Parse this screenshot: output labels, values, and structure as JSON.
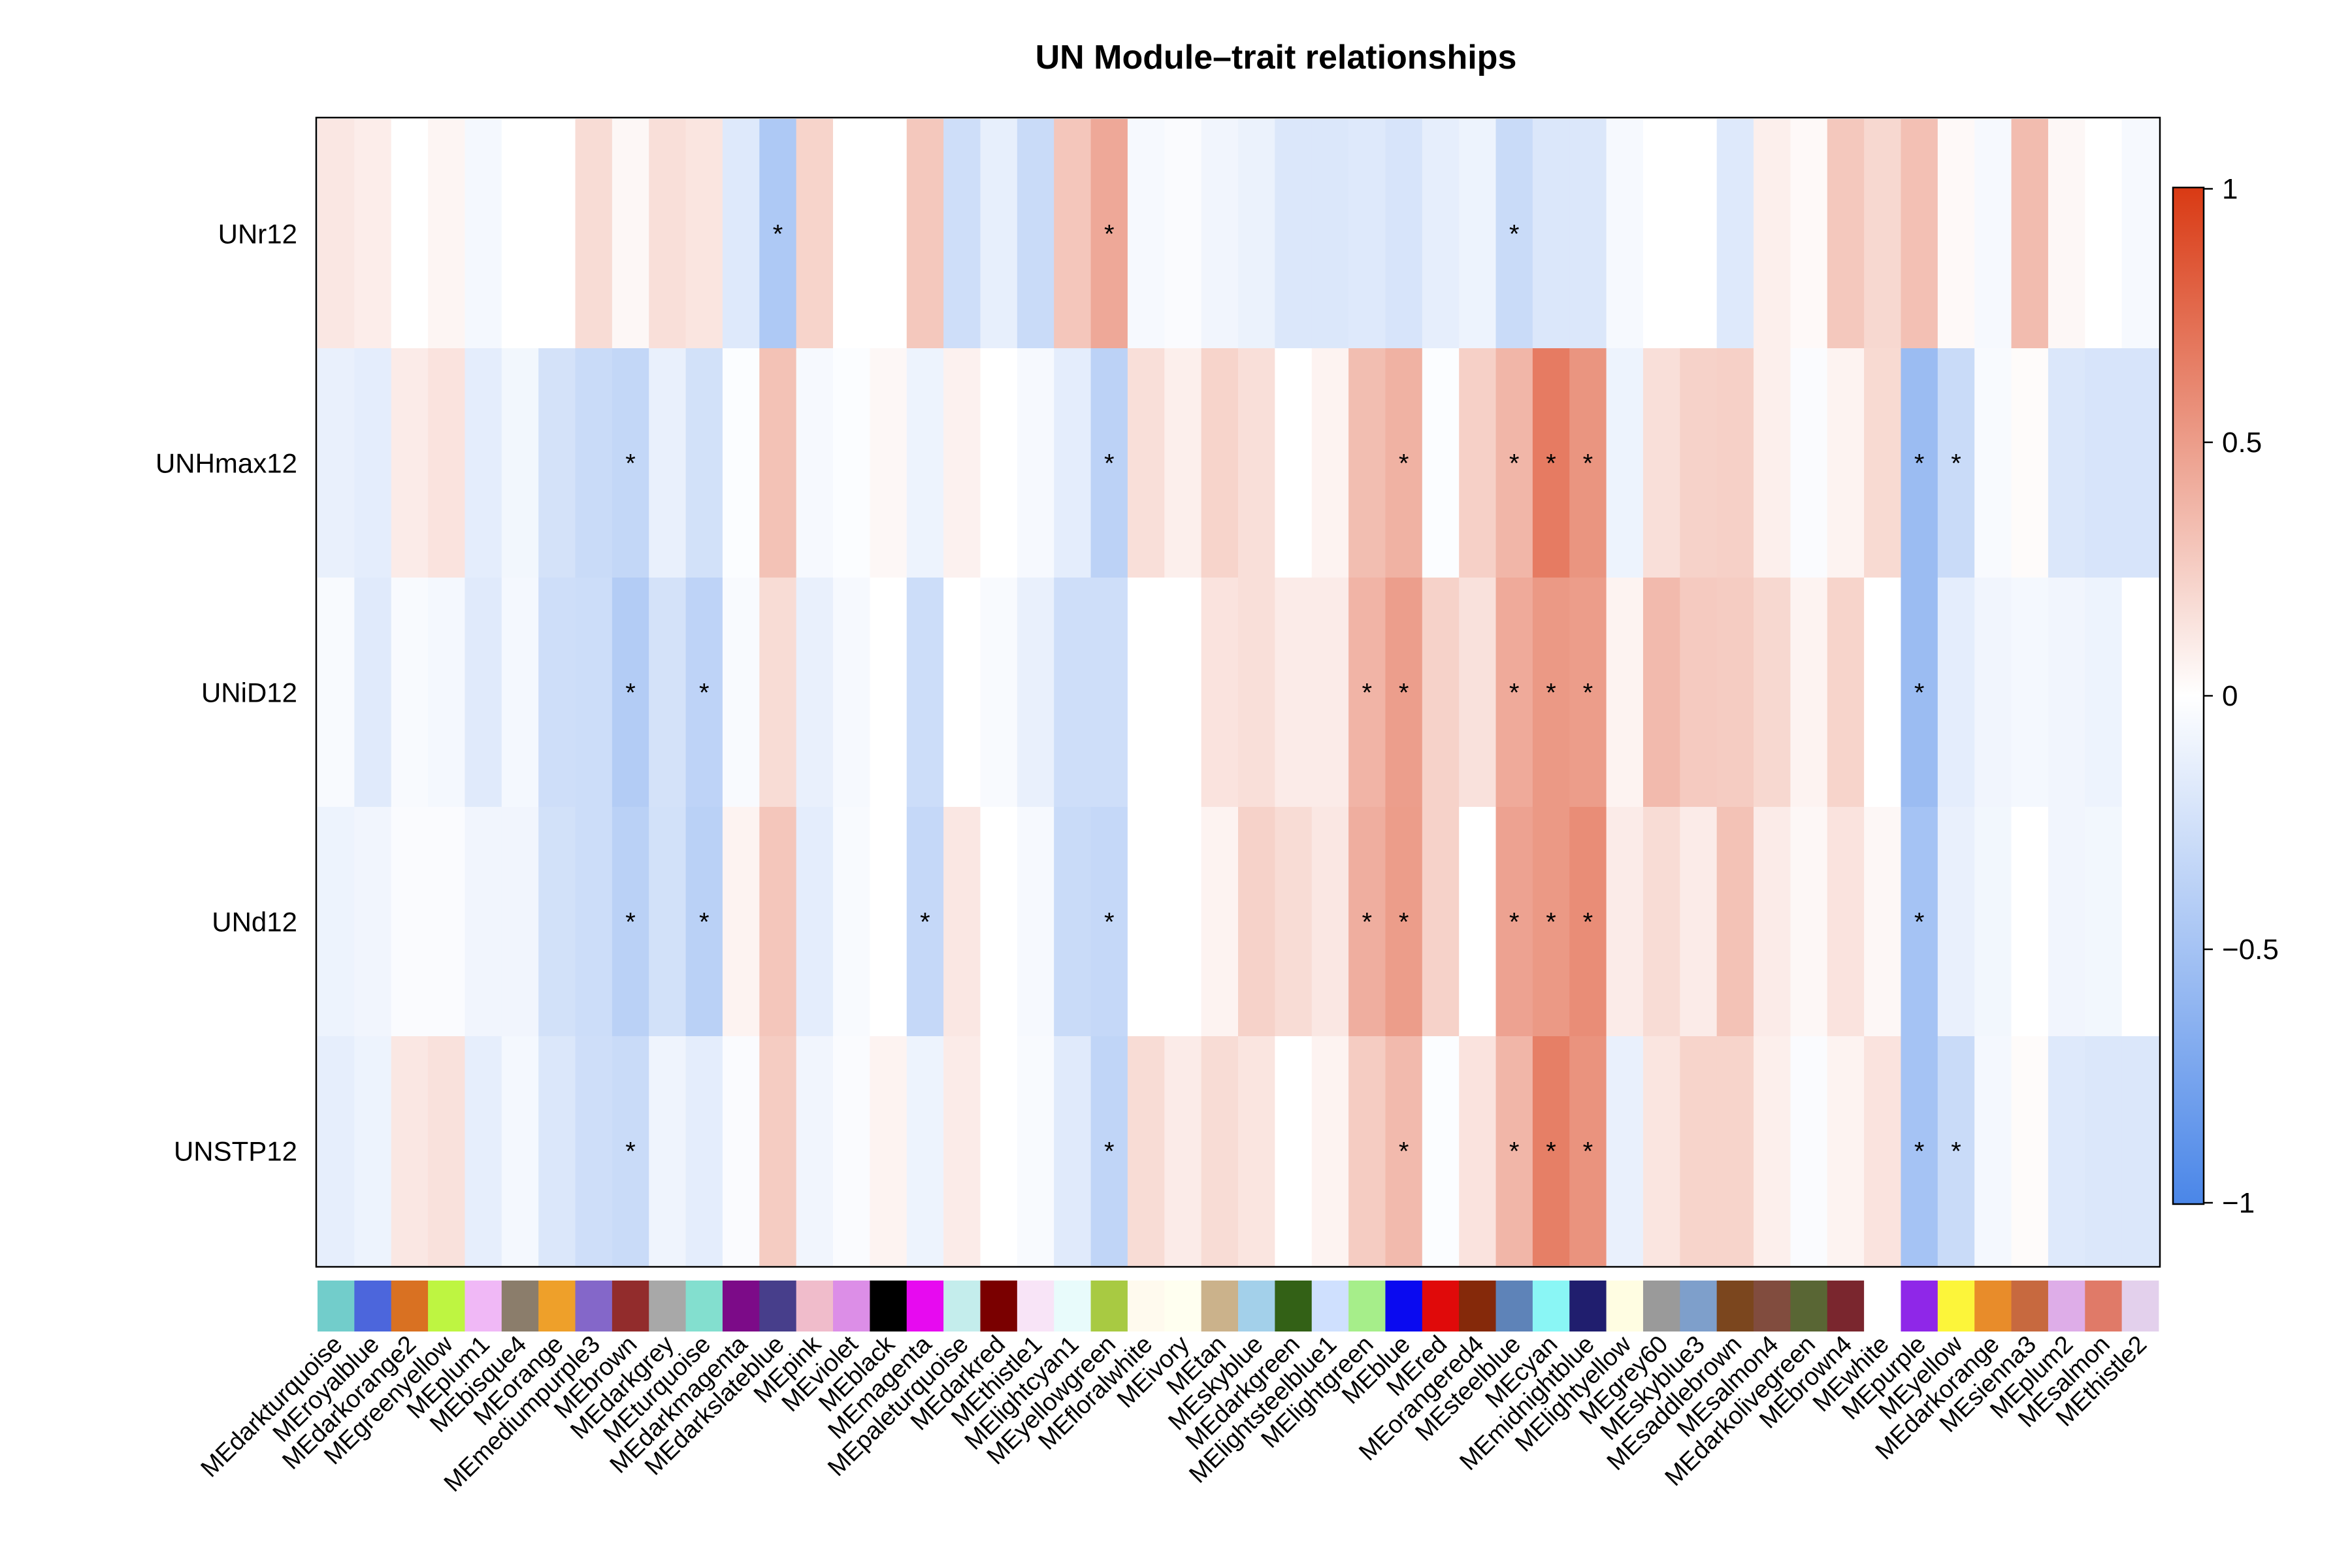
{
  "chart_data": {
    "type": "heatmap",
    "title": "UN Module–trait relationships",
    "rows": [
      "UNr12",
      "UNHmax12",
      "UNiD12",
      "UNd12",
      "UNSTP12"
    ],
    "columns": [
      {
        "name": "MEdarkturquoise",
        "color": "#72CDCB"
      },
      {
        "name": "MEroyalblue",
        "color": "#4C66DC"
      },
      {
        "name": "MEdarkorange2",
        "color": "#D97122"
      },
      {
        "name": "MEgreenyellow",
        "color": "#BEF541"
      },
      {
        "name": "MEplum1",
        "color": "#F0B8F6"
      },
      {
        "name": "MEbisque4",
        "color": "#8B7D6B"
      },
      {
        "name": "MEorange",
        "color": "#EEA02A"
      },
      {
        "name": "MEmediumpurple3",
        "color": "#8467C9"
      },
      {
        "name": "MEbrown",
        "color": "#922C2C"
      },
      {
        "name": "MEdarkgrey",
        "color": "#A8A8A8"
      },
      {
        "name": "MEturquoise",
        "color": "#83DFCF"
      },
      {
        "name": "MEdarkmagenta",
        "color": "#7C0B88"
      },
      {
        "name": "MEdarkslateblue",
        "color": "#473E8B"
      },
      {
        "name": "MEpink",
        "color": "#F0BCCB"
      },
      {
        "name": "MEviolet",
        "color": "#DC8EE7"
      },
      {
        "name": "MEblack",
        "color": "#000000"
      },
      {
        "name": "MEmagenta",
        "color": "#E70AF0"
      },
      {
        "name": "MEpaleturquoise",
        "color": "#C4EDEC"
      },
      {
        "name": "MEdarkred",
        "color": "#7A0000"
      },
      {
        "name": "MEthistle1",
        "color": "#F8E4F7"
      },
      {
        "name": "MElightcyan1",
        "color": "#E8FBFB"
      },
      {
        "name": "MEyellowgreen",
        "color": "#A8CA42"
      },
      {
        "name": "MEfloralwhite",
        "color": "#FFFAEE"
      },
      {
        "name": "MEivory",
        "color": "#FFFFF0"
      },
      {
        "name": "MEtan",
        "color": "#CBB28B"
      },
      {
        "name": "MEskyblue",
        "color": "#A3D0EA"
      },
      {
        "name": "MEdarkgreen",
        "color": "#336116"
      },
      {
        "name": "MElightsteelblue1",
        "color": "#CFE0FE"
      },
      {
        "name": "MElightgreen",
        "color": "#A6EE8A"
      },
      {
        "name": "MEblue",
        "color": "#0A0AF0"
      },
      {
        "name": "MEred",
        "color": "#E00A0A"
      },
      {
        "name": "MEorangered4",
        "color": "#85290A"
      },
      {
        "name": "MEsteelblue",
        "color": "#5E83B8"
      },
      {
        "name": "MEcyan",
        "color": "#8AF6F5"
      },
      {
        "name": "MEmidnightblue",
        "color": "#201E6E"
      },
      {
        "name": "MElightyellow",
        "color": "#FFFDE2"
      },
      {
        "name": "MEgrey60",
        "color": "#9A9A9A"
      },
      {
        "name": "MEskyblue3",
        "color": "#7E9FCB"
      },
      {
        "name": "MEsaddlebrown",
        "color": "#7B461E"
      },
      {
        "name": "MEsalmon4",
        "color": "#814C3E"
      },
      {
        "name": "MEdarkolivegreen",
        "color": "#596634"
      },
      {
        "name": "MEbrown4",
        "color": "#7A262E"
      },
      {
        "name": "MEwhite",
        "color": "#FFFFFF"
      },
      {
        "name": "MEpurple",
        "color": "#8F27E8"
      },
      {
        "name": "MEyellow",
        "color": "#FCF53A"
      },
      {
        "name": "MEdarkorange",
        "color": "#E88C2A"
      },
      {
        "name": "MEsienna3",
        "color": "#C7693F"
      },
      {
        "name": "MEplum2",
        "color": "#DEADE8"
      },
      {
        "name": "MEsalmon",
        "color": "#E07A68"
      },
      {
        "name": "MEthistle2",
        "color": "#E3D0EC"
      }
    ],
    "values": [
      [
        0.12,
        0.09,
        0.0,
        0.05,
        -0.06,
        0.0,
        0.0,
        0.18,
        0.04,
        0.16,
        0.13,
        -0.18,
        -0.45,
        0.22,
        0.0,
        0.0,
        0.28,
        -0.27,
        -0.13,
        -0.3,
        0.29,
        0.44,
        -0.05,
        -0.03,
        -0.08,
        -0.11,
        -0.2,
        -0.2,
        -0.18,
        -0.22,
        -0.14,
        -0.1,
        -0.3,
        -0.2,
        -0.2,
        -0.05,
        0.0,
        0.0,
        -0.18,
        0.08,
        0.03,
        0.28,
        0.2,
        0.32,
        0.03,
        -0.05,
        0.34,
        0.04,
        0.0,
        -0.05
      ],
      [
        -0.12,
        -0.15,
        0.1,
        0.14,
        -0.15,
        -0.07,
        -0.24,
        -0.3,
        -0.33,
        -0.12,
        -0.25,
        -0.02,
        0.31,
        -0.05,
        -0.02,
        0.04,
        -0.1,
        0.07,
        0.0,
        -0.05,
        -0.15,
        -0.37,
        0.16,
        0.08,
        0.22,
        0.16,
        0.0,
        0.06,
        0.33,
        0.39,
        -0.02,
        0.24,
        0.37,
        0.67,
        0.54,
        -0.1,
        0.16,
        0.23,
        0.24,
        0.08,
        -0.03,
        0.06,
        0.19,
        -0.55,
        -0.3,
        -0.04,
        0.02,
        -0.2,
        -0.22,
        -0.22
      ],
      [
        -0.04,
        -0.17,
        -0.04,
        -0.06,
        -0.17,
        -0.06,
        -0.27,
        -0.28,
        -0.42,
        -0.24,
        -0.36,
        -0.04,
        0.18,
        -0.12,
        -0.05,
        0.0,
        -0.28,
        0.0,
        -0.04,
        -0.12,
        -0.27,
        -0.27,
        0.0,
        0.0,
        0.14,
        0.16,
        0.1,
        0.1,
        0.38,
        0.49,
        0.23,
        0.15,
        0.43,
        0.52,
        0.5,
        0.06,
        0.35,
        0.27,
        0.26,
        0.2,
        0.06,
        0.22,
        0.0,
        -0.55,
        -0.15,
        -0.08,
        -0.06,
        -0.08,
        -0.1,
        0.0
      ],
      [
        -0.1,
        -0.08,
        -0.03,
        -0.03,
        -0.08,
        -0.08,
        -0.25,
        -0.28,
        -0.38,
        -0.25,
        -0.38,
        0.06,
        0.29,
        -0.15,
        -0.04,
        0.0,
        -0.32,
        0.12,
        0.0,
        -0.05,
        -0.3,
        -0.32,
        0.0,
        0.0,
        0.06,
        0.23,
        0.18,
        0.12,
        0.41,
        0.5,
        0.23,
        0.0,
        0.47,
        0.52,
        0.58,
        0.1,
        0.18,
        0.1,
        0.31,
        0.1,
        0.04,
        0.14,
        0.04,
        -0.5,
        -0.12,
        -0.07,
        0.0,
        -0.08,
        -0.07,
        0.0
      ],
      [
        -0.14,
        -0.1,
        0.12,
        0.15,
        -0.14,
        -0.06,
        -0.2,
        -0.27,
        -0.3,
        -0.09,
        -0.15,
        -0.03,
        0.26,
        -0.08,
        -0.03,
        0.06,
        -0.1,
        0.1,
        0.0,
        -0.04,
        -0.17,
        -0.35,
        0.18,
        0.1,
        0.18,
        0.13,
        0.0,
        0.06,
        0.26,
        0.35,
        -0.02,
        0.14,
        0.37,
        0.65,
        0.55,
        -0.12,
        0.13,
        0.22,
        0.22,
        0.08,
        -0.03,
        0.06,
        0.14,
        -0.5,
        -0.3,
        -0.06,
        0.02,
        -0.18,
        -0.2,
        -0.2
      ]
    ],
    "significant": [
      [
        12,
        21,
        32
      ],
      [
        8,
        21,
        29,
        32,
        33,
        34,
        43,
        44
      ],
      [
        8,
        10,
        28,
        29,
        32,
        33,
        34,
        43
      ],
      [
        8,
        10,
        16,
        21,
        28,
        29,
        32,
        33,
        34,
        43
      ],
      [
        8,
        21,
        29,
        32,
        33,
        34,
        43,
        44
      ]
    ],
    "star_label": "*",
    "colorbar": {
      "range": [
        -1,
        1
      ],
      "ticks": [
        1,
        0.5,
        0,
        -0.5,
        -1
      ],
      "tick_labels": [
        "1",
        "0.5",
        "0",
        "−0.5",
        "−1"
      ],
      "low_color": "#4A86E8",
      "mid_color": "#FFFFFF",
      "high_color": "#D93A14"
    }
  }
}
